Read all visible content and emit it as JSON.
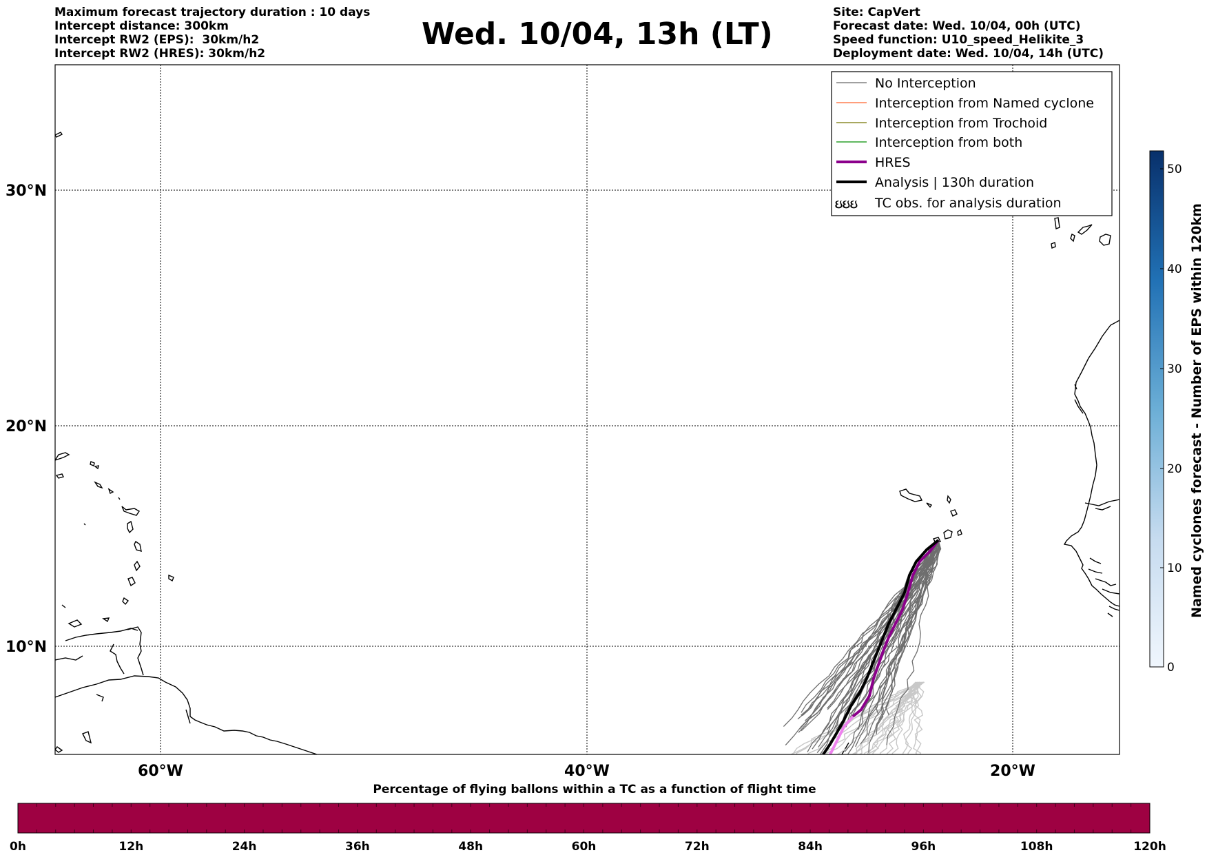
{
  "header": {
    "left_lines": [
      "Maximum forecast trajectory duration : 10 days",
      "Intercept distance: 300km",
      "Intercept RW2 (EPS):  30km/h2",
      "Intercept RW2 (HRES): 30km/h2"
    ],
    "title": "Wed. 10/04, 13h (LT)",
    "right_lines": [
      "Site: CapVert",
      "Forecast date: Wed. 10/04, 00h (UTC)",
      "Speed function: U10_speed_Helikite_3",
      "Deployment date: Wed. 10/04, 14h (UTC)"
    ]
  },
  "map": {
    "lat_labels": [
      "30°N",
      "20°N",
      "10°N"
    ],
    "lon_labels": [
      "60°W",
      "40°W",
      "20°W"
    ]
  },
  "legend": {
    "items": [
      {
        "label": "No Interception",
        "color": "#808080",
        "style": "thin"
      },
      {
        "label": "Interception from Named cyclone",
        "color": "#ff7f50",
        "style": "thin"
      },
      {
        "label": "Interception from Trochoid",
        "color": "#8b8b2b",
        "style": "thin"
      },
      {
        "label": "Interception from both",
        "color": "#2ca02c",
        "style": "thin"
      },
      {
        "label": "HRES",
        "color": "#8b008b",
        "style": "thick"
      },
      {
        "label": "Analysis | 130h duration",
        "color": "#000000",
        "style": "thick"
      },
      {
        "label": "TC obs. for analysis duration",
        "color": "#000000",
        "style": "symbol",
        "symbol": "ઇઇઇ"
      }
    ]
  },
  "colorbar_right": {
    "label": "Named cyclones forecast - Number of EPS within 120km",
    "ticks": [
      "50",
      "40",
      "30",
      "20",
      "10",
      "0"
    ],
    "color_low": "#e3eef8",
    "color_high": "#08306b"
  },
  "colorbar_bottom": {
    "title": "Percentage of flying ballons within a TC as a function of flight time",
    "ticks": [
      "0h",
      "12h",
      "24h",
      "36h",
      "48h",
      "60h",
      "72h",
      "84h",
      "96h",
      "108h",
      "120h"
    ],
    "color": "#9e0142"
  },
  "colors": {
    "ensemble_gray": "#6e6e6e",
    "ensemble_light": "#c8c8c8",
    "hres": "#8b008b",
    "hres_light": "#ee82ee",
    "analysis": "#000000"
  }
}
